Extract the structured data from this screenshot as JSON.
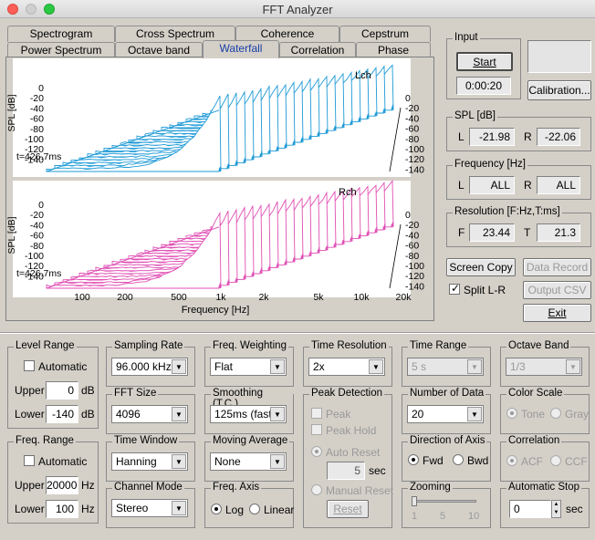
{
  "window": {
    "title": "FFT Analyzer"
  },
  "tabs": {
    "row1": [
      "Spectrogram",
      "Cross Spectrum",
      "Coherence",
      "Cepstrum"
    ],
    "row2": [
      "Power Spectrum",
      "Octave band",
      "Waterfall",
      "Correlation",
      "Phase"
    ],
    "selected": "Waterfall"
  },
  "graphs": {
    "ylabel": "SPL [dB]",
    "y_ticks": [
      "0",
      "-20",
      "-40",
      "-60",
      "-80",
      "-100",
      "-120",
      "-140"
    ],
    "x_ticks": [
      "100",
      "200",
      "500",
      "1k",
      "2k",
      "5k",
      "10k",
      "20k"
    ],
    "xlabel": "Frequency [Hz]",
    "time_label": "t=426.7ms",
    "lch": {
      "label": "Lch",
      "color": "#1e9ad6"
    },
    "rch": {
      "label": "Rch",
      "color": "#e04fb4"
    }
  },
  "input": {
    "label": "Input",
    "start": "Start",
    "time": "0:00:20",
    "calibration": "Calibration..."
  },
  "spl": {
    "label": "SPL [dB]",
    "l_label": "L",
    "l": "-21.98",
    "r_label": "R",
    "r": "-22.06"
  },
  "frequency": {
    "label": "Frequency [Hz]",
    "l_label": "L",
    "l": "ALL",
    "r_label": "R",
    "r": "ALL"
  },
  "resolution": {
    "label": "Resolution [F:Hz,T:ms]",
    "f_label": "F",
    "f": "23.44",
    "t_label": "T",
    "t": "21.3"
  },
  "actions": {
    "screen_copy": "Screen Copy",
    "data_record": "Data Record",
    "split": "Split L-R",
    "output_csv": "Output CSV",
    "exit": "Exit"
  },
  "level_range": {
    "label": "Level Range",
    "automatic": "Automatic",
    "upper_label": "Upper",
    "upper": "0",
    "lower_label": "Lower",
    "lower": "-140",
    "unit": "dB"
  },
  "freq_range": {
    "label": "Freq. Range",
    "automatic": "Automatic",
    "upper_label": "Upper",
    "upper": "20000",
    "lower_label": "Lower",
    "lower": "100",
    "unit": "Hz"
  },
  "sampling_rate": {
    "label": "Sampling Rate",
    "value": "96.000 kHz"
  },
  "fft_size": {
    "label": "FFT Size",
    "value": "4096"
  },
  "time_window": {
    "label": "Time Window",
    "value": "Hanning"
  },
  "channel_mode": {
    "label": "Channel Mode",
    "value": "Stereo"
  },
  "freq_weighting": {
    "label": "Freq. Weighting",
    "value": "Flat"
  },
  "smoothing": {
    "label": "Smoothing (T.C.)",
    "value": "125ms (fast)"
  },
  "moving_average": {
    "label": "Moving Average",
    "value": "None"
  },
  "freq_axis": {
    "label": "Freq. Axis",
    "log": "Log",
    "linear": "Linear"
  },
  "time_resolution": {
    "label": "Time Resolution",
    "value": "2x"
  },
  "peak_detection": {
    "label": "Peak Detection",
    "peak": "Peak",
    "peak_hold": "Peak Hold",
    "auto_reset": "Auto Reset",
    "sec_value": "5",
    "sec": "sec",
    "manual_reset": "Manual Reset",
    "reset": "Reset"
  },
  "time_range": {
    "label": "Time Range",
    "value": "5 s"
  },
  "number_of_data": {
    "label": "Number of Data",
    "value": "20"
  },
  "direction_of_axis": {
    "label": "Direction of Axis",
    "fwd": "Fwd",
    "bwd": "Bwd"
  },
  "zooming": {
    "label": "Zooming",
    "ticks": [
      "1",
      "5",
      "10"
    ]
  },
  "octave_band": {
    "label": "Octave Band",
    "value": "1/3"
  },
  "color_scale": {
    "label": "Color Scale",
    "tone": "Tone",
    "gray": "Gray"
  },
  "correlation": {
    "label": "Correlation",
    "acf": "ACF",
    "ccf": "CCF"
  },
  "automatic_stop": {
    "label": "Automatic Stop",
    "value": "0",
    "unit": "sec"
  }
}
